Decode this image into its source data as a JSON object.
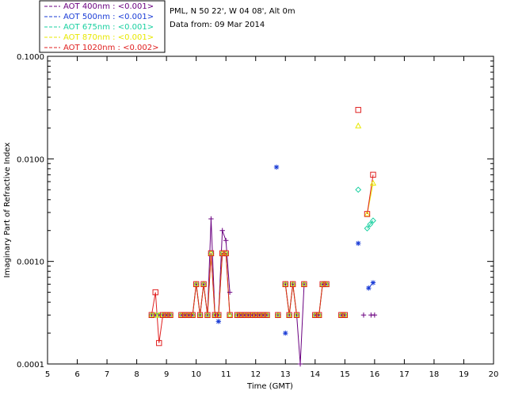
{
  "header": {
    "site_line": "PML, N 50 22', W 04 08', Alt 0m",
    "date_line": "Data from: 09 Mar 2014"
  },
  "chart_data": {
    "type": "scatter",
    "xlabel": "Time (GMT)",
    "ylabel": "Imaginary Part of Refractive Index",
    "xlim": [
      5,
      20
    ],
    "ylim": [
      0.0001,
      0.1
    ],
    "yscale": "log",
    "x_ticks": [
      5,
      6,
      7,
      8,
      9,
      10,
      11,
      12,
      13,
      14,
      15,
      16,
      17,
      18,
      19,
      20
    ],
    "y_ticks": [
      {
        "value": 0.0001,
        "label": "0.0001"
      },
      {
        "value": 0.001,
        "label": "0.0010"
      },
      {
        "value": 0.01,
        "label": "0.0100"
      },
      {
        "value": 0.1,
        "label": "0.1000"
      }
    ],
    "grid": false,
    "legend_position": "top-left-outside",
    "series": [
      {
        "name": "AOT  400nm : <0.001>",
        "color": "#6a0080",
        "marker": "plus",
        "points": [
          [
            8.5,
            0.0003
          ],
          [
            8.63,
            0.0003
          ],
          [
            8.75,
            0.0003
          ],
          [
            8.88,
            0.0003
          ],
          [
            9.0,
            0.0003
          ],
          [
            9.13,
            0.0003
          ],
          [
            9.5,
            0.0003
          ],
          [
            9.63,
            0.0003
          ],
          [
            9.75,
            0.0003
          ],
          [
            9.88,
            0.0003
          ],
          [
            10.0,
            0.0006
          ],
          [
            10.13,
            0.0003
          ],
          [
            10.25,
            0.0006
          ],
          [
            10.38,
            0.0003
          ],
          [
            10.5,
            0.0026
          ],
          [
            10.63,
            0.0003
          ],
          [
            10.75,
            0.0003
          ],
          [
            10.88,
            0.002
          ],
          [
            11.0,
            0.0016
          ],
          [
            11.13,
            0.0005
          ],
          [
            11.38,
            0.0003
          ],
          [
            11.5,
            0.0003
          ],
          [
            11.63,
            0.0003
          ],
          [
            11.75,
            0.0003
          ],
          [
            11.88,
            0.0003
          ],
          [
            12.0,
            0.0003
          ],
          [
            12.13,
            0.0003
          ],
          [
            12.25,
            0.0003
          ],
          [
            12.38,
            0.0003
          ],
          [
            12.75,
            0.0003
          ],
          [
            13.0,
            0.0006
          ],
          [
            13.13,
            0.0003
          ],
          [
            13.25,
            0.0006
          ],
          [
            13.38,
            0.0003
          ],
          [
            13.5,
            0.0001
          ],
          [
            13.63,
            0.0006
          ],
          [
            14.0,
            0.0003
          ],
          [
            14.13,
            0.0003
          ],
          [
            14.25,
            0.0006
          ],
          [
            14.38,
            0.0006
          ],
          [
            14.88,
            0.0003
          ],
          [
            15.0,
            0.0003
          ],
          [
            15.63,
            0.0003
          ],
          [
            15.88,
            0.0003
          ],
          [
            16.0,
            0.0003
          ]
        ]
      },
      {
        "name": "AOT  500nm : <0.001>",
        "color": "#1a3cd6",
        "marker": "star",
        "points": [
          [
            10.75,
            0.00026
          ],
          [
            12.7,
            0.0083
          ],
          [
            13.0,
            0.0002
          ],
          [
            15.45,
            0.0015
          ],
          [
            15.8,
            0.00055
          ],
          [
            15.95,
            0.00062
          ]
        ]
      },
      {
        "name": "AOT  675nm : <0.001>",
        "color": "#18d0a0",
        "marker": "diamond",
        "points": [
          [
            8.5,
            0.0003
          ],
          [
            8.63,
            0.0003
          ],
          [
            8.75,
            0.0003
          ],
          [
            8.88,
            0.0003
          ],
          [
            9.0,
            0.0003
          ],
          [
            9.13,
            0.0003
          ],
          [
            9.5,
            0.0003
          ],
          [
            9.63,
            0.0003
          ],
          [
            9.75,
            0.0003
          ],
          [
            9.88,
            0.0003
          ],
          [
            10.0,
            0.0006
          ],
          [
            10.13,
            0.0003
          ],
          [
            10.25,
            0.0006
          ],
          [
            10.38,
            0.0003
          ],
          [
            10.5,
            0.0012
          ],
          [
            10.63,
            0.0003
          ],
          [
            10.75,
            0.0003
          ],
          [
            10.88,
            0.0012
          ],
          [
            11.0,
            0.0012
          ],
          [
            11.13,
            0.0003
          ],
          [
            11.38,
            0.0003
          ],
          [
            11.5,
            0.0003
          ],
          [
            11.63,
            0.0003
          ],
          [
            11.75,
            0.0003
          ],
          [
            11.88,
            0.0003
          ],
          [
            12.0,
            0.0003
          ],
          [
            12.13,
            0.0003
          ],
          [
            12.25,
            0.0003
          ],
          [
            12.38,
            0.0003
          ],
          [
            12.75,
            0.0003
          ],
          [
            13.0,
            0.0006
          ],
          [
            13.13,
            0.0003
          ],
          [
            13.25,
            0.0006
          ],
          [
            13.38,
            0.0003
          ],
          [
            13.63,
            0.0006
          ],
          [
            14.0,
            0.0003
          ],
          [
            14.13,
            0.0003
          ],
          [
            14.25,
            0.0006
          ],
          [
            14.38,
            0.0006
          ],
          [
            14.88,
            0.0003
          ],
          [
            15.0,
            0.0003
          ],
          [
            15.45,
            0.005
          ],
          [
            15.75,
            0.0021
          ],
          [
            15.85,
            0.0023
          ],
          [
            15.95,
            0.0025
          ]
        ]
      },
      {
        "name": "AOT  870nm : <0.001>",
        "color": "#e8e800",
        "marker": "triangle",
        "points": [
          [
            8.5,
            0.0003
          ],
          [
            8.63,
            0.0003
          ],
          [
            8.75,
            0.0003
          ],
          [
            8.88,
            0.0003
          ],
          [
            9.0,
            0.0003
          ],
          [
            9.13,
            0.0003
          ],
          [
            9.5,
            0.0003
          ],
          [
            9.63,
            0.0003
          ],
          [
            9.75,
            0.0003
          ],
          [
            9.88,
            0.0003
          ],
          [
            10.0,
            0.0006
          ],
          [
            10.13,
            0.0003
          ],
          [
            10.25,
            0.0006
          ],
          [
            10.38,
            0.0003
          ],
          [
            10.5,
            0.0012
          ],
          [
            10.63,
            0.0003
          ],
          [
            10.75,
            0.0003
          ],
          [
            10.88,
            0.0012
          ],
          [
            11.0,
            0.0012
          ],
          [
            11.13,
            0.0003
          ],
          [
            11.38,
            0.0003
          ],
          [
            11.5,
            0.0003
          ],
          [
            11.63,
            0.0003
          ],
          [
            11.75,
            0.0003
          ],
          [
            11.88,
            0.0003
          ],
          [
            12.0,
            0.0003
          ],
          [
            12.13,
            0.0003
          ],
          [
            12.25,
            0.0003
          ],
          [
            12.38,
            0.0003
          ],
          [
            12.75,
            0.0003
          ],
          [
            13.0,
            0.0006
          ],
          [
            13.13,
            0.0003
          ],
          [
            13.25,
            0.0006
          ],
          [
            13.38,
            0.0003
          ],
          [
            13.63,
            0.0006
          ],
          [
            14.0,
            0.0003
          ],
          [
            14.13,
            0.0003
          ],
          [
            14.25,
            0.0006
          ],
          [
            14.38,
            0.0006
          ],
          [
            14.88,
            0.0003
          ],
          [
            15.0,
            0.0003
          ],
          [
            15.45,
            0.021
          ],
          [
            15.75,
            0.0029
          ],
          [
            15.95,
            0.0058
          ]
        ]
      },
      {
        "name": "AOT 1020nm : <0.002>",
        "color": "#e02020",
        "marker": "square",
        "points": [
          [
            8.5,
            0.0003
          ],
          [
            8.63,
            0.0005
          ],
          [
            8.75,
            0.00016
          ],
          [
            8.88,
            0.0003
          ],
          [
            9.0,
            0.0003
          ],
          [
            9.13,
            0.0003
          ],
          [
            9.5,
            0.0003
          ],
          [
            9.63,
            0.0003
          ],
          [
            9.75,
            0.0003
          ],
          [
            9.88,
            0.0003
          ],
          [
            10.0,
            0.0006
          ],
          [
            10.13,
            0.0003
          ],
          [
            10.25,
            0.0006
          ],
          [
            10.38,
            0.0003
          ],
          [
            10.5,
            0.0012
          ],
          [
            10.63,
            0.0003
          ],
          [
            10.75,
            0.0003
          ],
          [
            10.88,
            0.0012
          ],
          [
            11.0,
            0.0012
          ],
          [
            11.13,
            0.0003
          ],
          [
            11.38,
            0.0003
          ],
          [
            11.5,
            0.0003
          ],
          [
            11.63,
            0.0003
          ],
          [
            11.75,
            0.0003
          ],
          [
            11.88,
            0.0003
          ],
          [
            12.0,
            0.0003
          ],
          [
            12.13,
            0.0003
          ],
          [
            12.25,
            0.0003
          ],
          [
            12.38,
            0.0003
          ],
          [
            12.75,
            0.0003
          ],
          [
            13.0,
            0.0006
          ],
          [
            13.13,
            0.0003
          ],
          [
            13.25,
            0.0006
          ],
          [
            13.38,
            0.0003
          ],
          [
            13.63,
            0.0006
          ],
          [
            14.0,
            0.0003
          ],
          [
            14.13,
            0.0003
          ],
          [
            14.25,
            0.0006
          ],
          [
            14.38,
            0.0006
          ],
          [
            14.88,
            0.0003
          ],
          [
            15.0,
            0.0003
          ],
          [
            15.45,
            0.03
          ],
          [
            15.75,
            0.0029
          ],
          [
            15.95,
            0.007
          ]
        ]
      }
    ]
  }
}
